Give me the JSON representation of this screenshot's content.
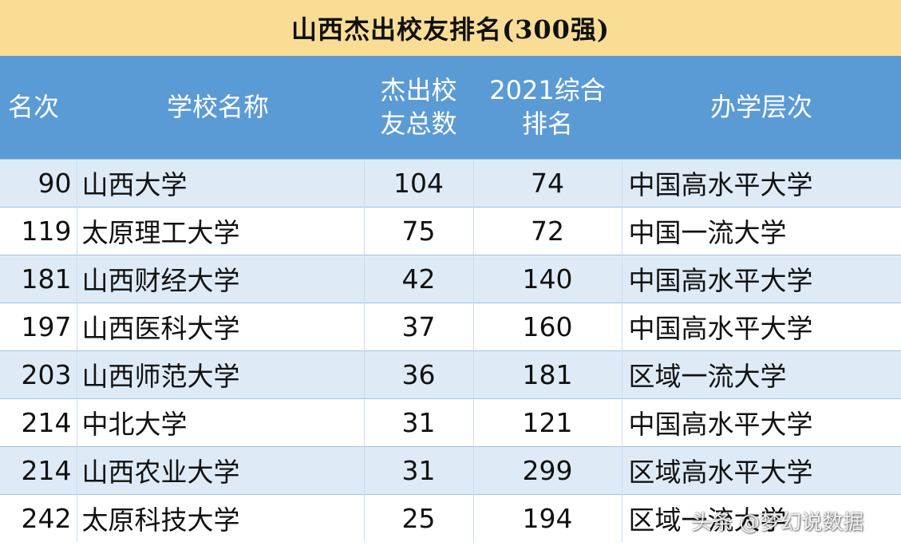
{
  "title": "山西杰出校友排名(300强)",
  "headers": {
    "rank": "名次",
    "school": "学校名称",
    "total_line1": "杰出校",
    "total_line2": "友总数",
    "rank2021_line1": "2021综合",
    "rank2021_line2": "排名",
    "level": "办学层次"
  },
  "rows": [
    {
      "rank": "90",
      "school": "山西大学",
      "total": "104",
      "rank2021": "74",
      "level": "中国高水平大学"
    },
    {
      "rank": "119",
      "school": "太原理工大学",
      "total": "75",
      "rank2021": "72",
      "level": "中国一流大学"
    },
    {
      "rank": "181",
      "school": "山西财经大学",
      "total": "42",
      "rank2021": "140",
      "level": "中国高水平大学"
    },
    {
      "rank": "197",
      "school": "山西医科大学",
      "total": "37",
      "rank2021": "160",
      "level": "中国高水平大学"
    },
    {
      "rank": "203",
      "school": "山西师范大学",
      "total": "36",
      "rank2021": "181",
      "level": "区域一流大学"
    },
    {
      "rank": "214",
      "school": "中北大学",
      "total": "31",
      "rank2021": "121",
      "level": "中国高水平大学"
    },
    {
      "rank": "214",
      "school": "山西农业大学",
      "total": "31",
      "rank2021": "299",
      "level": "区域高水平大学"
    },
    {
      "rank": "242",
      "school": "太原科技大学",
      "total": "25",
      "rank2021": "194",
      "level": "区域一流大学"
    }
  ],
  "watermark": "头条 @梦幻说数据",
  "colors": {
    "title_bg": "#f9dd95",
    "header_bg": "#5b9bd5",
    "row_alt_bg": "#deebf7",
    "row_plain_bg": "#ffffff"
  }
}
